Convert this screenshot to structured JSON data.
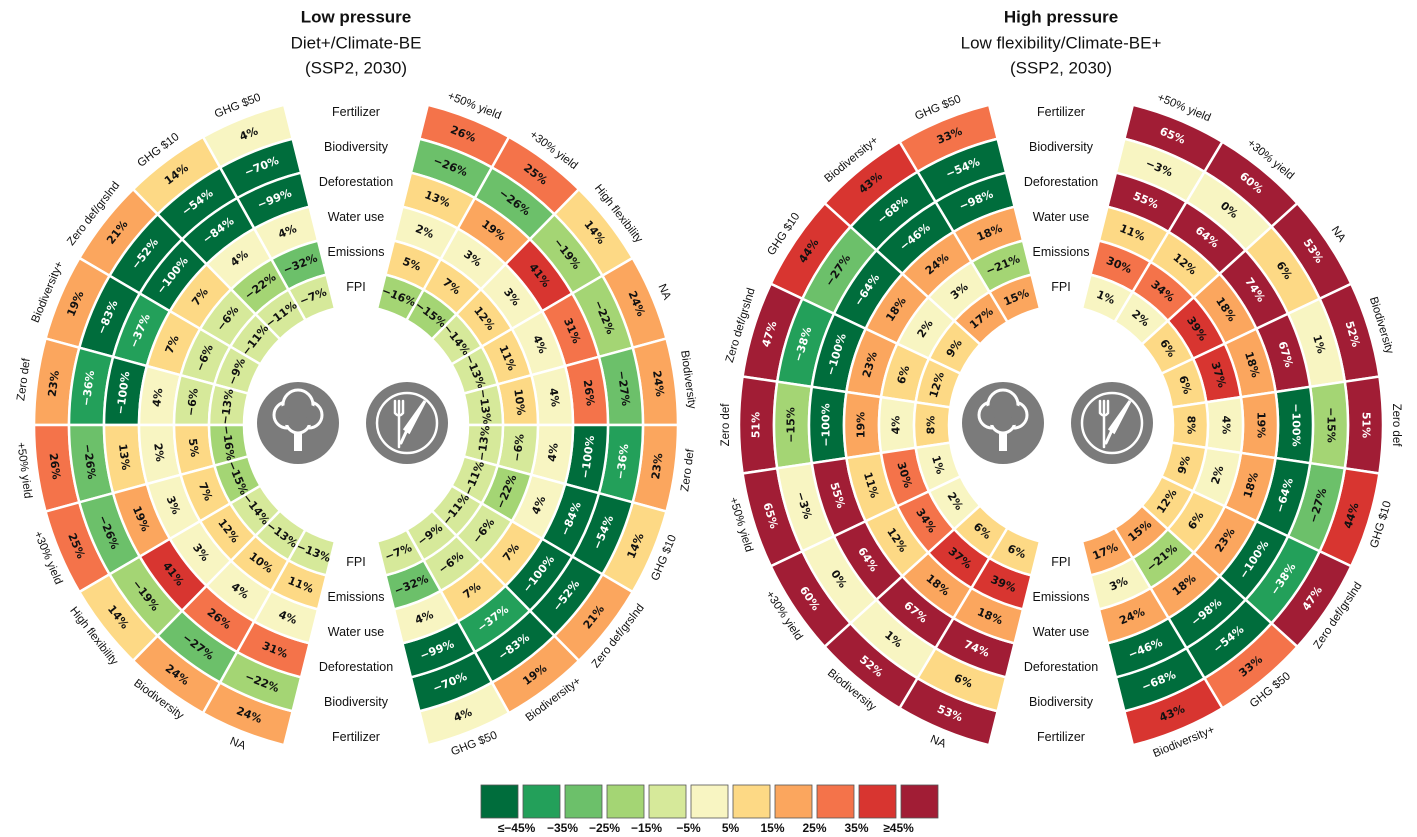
{
  "chart_data": [
    {
      "type": "radial-heatmap",
      "title": "Low pressure",
      "subtitle": [
        "Diet+/Climate-BE",
        "(SSP2, 2030)"
      ],
      "rings": [
        "Fertilizer",
        "Biodiversity",
        "Deforestation",
        "Water use",
        "Emissions",
        "FPI"
      ],
      "halves": [
        {
          "side": "left",
          "categories": [
            "GHG $50",
            "GHG $10",
            "Zero def/grslnd",
            "Biodiversity+",
            "Zero def",
            "+50% yield",
            "+30% yield",
            "High flexibility",
            "Biodiversity",
            "NA"
          ],
          "series": [
            {
              "values": [
                4,
                14,
                21,
                19,
                23,
                26,
                25,
                14,
                24,
                24
              ],
              "value_labels": [
                "4%",
                "14%",
                "21%",
                "19%",
                "23%",
                "26%",
                "25%",
                "14%",
                "24%",
                "24%"
              ]
            },
            {
              "values": [
                -70,
                -54,
                -52,
                -83,
                -36,
                -26,
                -26,
                -19,
                -27,
                -22
              ],
              "value_labels": [
                "−70%",
                "−54%",
                "−52%",
                "−83%",
                "−36%",
                "−26%",
                "−26%",
                "−19%",
                "−27%",
                "−22%"
              ]
            },
            {
              "values": [
                -99,
                -84,
                -100,
                -37,
                -100,
                13,
                19,
                41,
                26,
                31
              ],
              "value_labels": [
                "−99%",
                "−84%",
                "−100%",
                "−37%",
                "−100%",
                "13%",
                "19%",
                "41%",
                "26%",
                "31%"
              ]
            },
            {
              "values": [
                4,
                4,
                7,
                7,
                4,
                2,
                3,
                3,
                4,
                4
              ],
              "value_labels": [
                "4%",
                "4%",
                "7%",
                "7%",
                "4%",
                "2%",
                "3%",
                "3%",
                "4%",
                "4%"
              ]
            },
            {
              "values": [
                -32,
                -22,
                -6,
                -6,
                -6,
                5,
                7,
                12,
                10,
                11
              ],
              "value_labels": [
                "−32%",
                "−22%",
                "−6%",
                "−6%",
                "−6%",
                "5%",
                "7%",
                "12%",
                "10%",
                "11%"
              ]
            },
            {
              "values": [
                -7,
                -11,
                -11,
                -9,
                -13,
                -16,
                -15,
                -14,
                -13,
                -13
              ],
              "value_labels": [
                "−7%",
                "−11%",
                "−11%",
                "−9%",
                "−13%",
                "−16%",
                "−15%",
                "−14%",
                "−13%",
                "−13%"
              ]
            }
          ]
        },
        {
          "side": "right",
          "categories": [
            "+50% yield",
            "+30% yield",
            "High flexibility",
            "NA",
            "Biodiversity",
            "Zero def",
            "GHG $10",
            "Zero def/grslnd",
            "Biodiversity+",
            "GHG $50"
          ],
          "series": [
            {
              "values": [
                26,
                25,
                14,
                24,
                24,
                23,
                14,
                21,
                19,
                4
              ],
              "value_labels": [
                "26%",
                "25%",
                "14%",
                "24%",
                "24%",
                "23%",
                "14%",
                "21%",
                "19%",
                "4%"
              ]
            },
            {
              "values": [
                -26,
                -26,
                -19,
                -22,
                -27,
                -36,
                -54,
                -52,
                -83,
                -70
              ],
              "value_labels": [
                "−26%",
                "−26%",
                "−19%",
                "−22%",
                "−27%",
                "−36%",
                "−54%",
                "−52%",
                "−83%",
                "−70%"
              ]
            },
            {
              "values": [
                13,
                19,
                41,
                31,
                26,
                -100,
                -84,
                -100,
                -37,
                -99
              ],
              "value_labels": [
                "13%",
                "19%",
                "41%",
                "31%",
                "26%",
                "−100%",
                "−84%",
                "−100%",
                "−37%",
                "−99%"
              ]
            },
            {
              "values": [
                2,
                3,
                3,
                4,
                4,
                4,
                4,
                7,
                7,
                4
              ],
              "value_labels": [
                "2%",
                "3%",
                "3%",
                "4%",
                "4%",
                "4%",
                "4%",
                "7%",
                "7%",
                "4%"
              ]
            },
            {
              "values": [
                5,
                7,
                12,
                11,
                10,
                -6,
                -22,
                -6,
                -6,
                -32
              ],
              "value_labels": [
                "5%",
                "7%",
                "12%",
                "11%",
                "10%",
                "−6%",
                "−22%",
                "−6%",
                "−6%",
                "−32%"
              ]
            },
            {
              "values": [
                -16,
                -15,
                -14,
                -13,
                -13,
                -13,
                -11,
                -11,
                -9,
                -7
              ],
              "value_labels": [
                "−16%",
                "−15%",
                "−14%",
                "−13%",
                "−13%",
                "−13%",
                "−11%",
                "−11%",
                "−9%",
                "−7%"
              ]
            }
          ]
        }
      ]
    },
    {
      "type": "radial-heatmap",
      "title": "High pressure",
      "subtitle": [
        "Low flexibility/Climate-BE+",
        "(SSP2, 2030)"
      ],
      "rings": [
        "Fertilizer",
        "Biodiversity",
        "Deforestation",
        "Water use",
        "Emissions",
        "FPI"
      ],
      "halves": [
        {
          "side": "left",
          "categories": [
            "GHG $50",
            "Biodiversity+",
            "GHG $10",
            "Zero def/grslnd",
            "Zero def",
            "+50% yield",
            "+30% yield",
            "Biodiversity",
            "NA"
          ],
          "series": [
            {
              "values": [
                33,
                43,
                44,
                47,
                51,
                65,
                60,
                52,
                53
              ],
              "value_labels": [
                "33%",
                "43%",
                "44%",
                "47%",
                "51%",
                "65%",
                "60%",
                "52%",
                "53%"
              ]
            },
            {
              "values": [
                -54,
                -68,
                -27,
                -38,
                -15,
                -3,
                0,
                1,
                6
              ],
              "value_labels": [
                "−54%",
                "−68%",
                "−27%",
                "−38%",
                "−15%",
                "−3%",
                "0%",
                "1%",
                "6%"
              ]
            },
            {
              "values": [
                -98,
                -46,
                -64,
                -100,
                -100,
                55,
                64,
                67,
                74
              ],
              "value_labels": [
                "−98%",
                "−46%",
                "−64%",
                "−100%",
                "−100%",
                "55%",
                "64%",
                "67%",
                "74%"
              ]
            },
            {
              "values": [
                18,
                24,
                18,
                23,
                19,
                11,
                12,
                18,
                18
              ],
              "value_labels": [
                "18%",
                "24%",
                "18%",
                "23%",
                "19%",
                "11%",
                "12%",
                "18%",
                "18%"
              ]
            },
            {
              "values": [
                -21,
                3,
                2,
                6,
                4,
                30,
                34,
                37,
                39
              ],
              "value_labels": [
                "−21%",
                "3%",
                "2%",
                "6%",
                "4%",
                "30%",
                "34%",
                "37%",
                "39%"
              ]
            },
            {
              "values": [
                15,
                17,
                9,
                12,
                8,
                1,
                2,
                6,
                6
              ],
              "value_labels": [
                "15%",
                "17%",
                "9%",
                "12%",
                "8%",
                "1%",
                "2%",
                "6%",
                "6%"
              ]
            }
          ]
        },
        {
          "side": "right",
          "categories": [
            "+50% yield",
            "+30% yield",
            "NA",
            "Biodiversity",
            "Zero def",
            "GHG $10",
            "Zero def/grslnd",
            "GHG $50",
            "Biodiversity+"
          ],
          "series": [
            {
              "values": [
                65,
                60,
                53,
                52,
                51,
                44,
                47,
                33,
                43
              ],
              "value_labels": [
                "65%",
                "60%",
                "53%",
                "52%",
                "51%",
                "44%",
                "47%",
                "33%",
                "43%"
              ]
            },
            {
              "values": [
                -3,
                0,
                6,
                1,
                -15,
                -27,
                -38,
                -54,
                -68
              ],
              "value_labels": [
                "−3%",
                "0%",
                "6%",
                "1%",
                "−15%",
                "−27%",
                "−38%",
                "−54%",
                "−68%"
              ]
            },
            {
              "values": [
                55,
                64,
                74,
                67,
                -100,
                -64,
                -100,
                -98,
                -46
              ],
              "value_labels": [
                "55%",
                "64%",
                "74%",
                "67%",
                "−100%",
                "−64%",
                "−100%",
                "−98%",
                "−46%"
              ]
            },
            {
              "values": [
                11,
                12,
                18,
                18,
                19,
                18,
                23,
                18,
                24
              ],
              "value_labels": [
                "11%",
                "12%",
                "18%",
                "18%",
                "19%",
                "18%",
                "23%",
                "18%",
                "24%"
              ]
            },
            {
              "values": [
                30,
                34,
                39,
                37,
                4,
                2,
                6,
                -21,
                3
              ],
              "value_labels": [
                "30%",
                "34%",
                "39%",
                "37%",
                "4%",
                "2%",
                "6%",
                "−21%",
                "3%"
              ]
            },
            {
              "values": [
                1,
                2,
                6,
                6,
                8,
                9,
                12,
                15,
                17
              ],
              "value_labels": [
                "1%",
                "2%",
                "6%",
                "6%",
                "8%",
                "9%",
                "12%",
                "15%",
                "17%"
              ]
            }
          ]
        }
      ]
    }
  ],
  "legend": {
    "colors": [
      "#006d3c",
      "#23a05a",
      "#6cc06a",
      "#a4d574",
      "#d6e99a",
      "#f8f5c2",
      "#fdd985",
      "#fba65e",
      "#f4734a",
      "#d83530",
      "#a11d35"
    ],
    "thresholds": [
      {
        "value": -45,
        "label": "≤−45%"
      },
      {
        "value": -35,
        "label": "−35%"
      },
      {
        "value": -25,
        "label": "−25%"
      },
      {
        "value": -15,
        "label": "−15%"
      },
      {
        "value": -5,
        "label": "−5%"
      },
      {
        "value": 5,
        "label": "5%"
      },
      {
        "value": 15,
        "label": "15%"
      },
      {
        "value": 25,
        "label": "25%"
      },
      {
        "value": 35,
        "label": "35%"
      },
      {
        "value": 45,
        "label": "≥45%"
      }
    ]
  }
}
